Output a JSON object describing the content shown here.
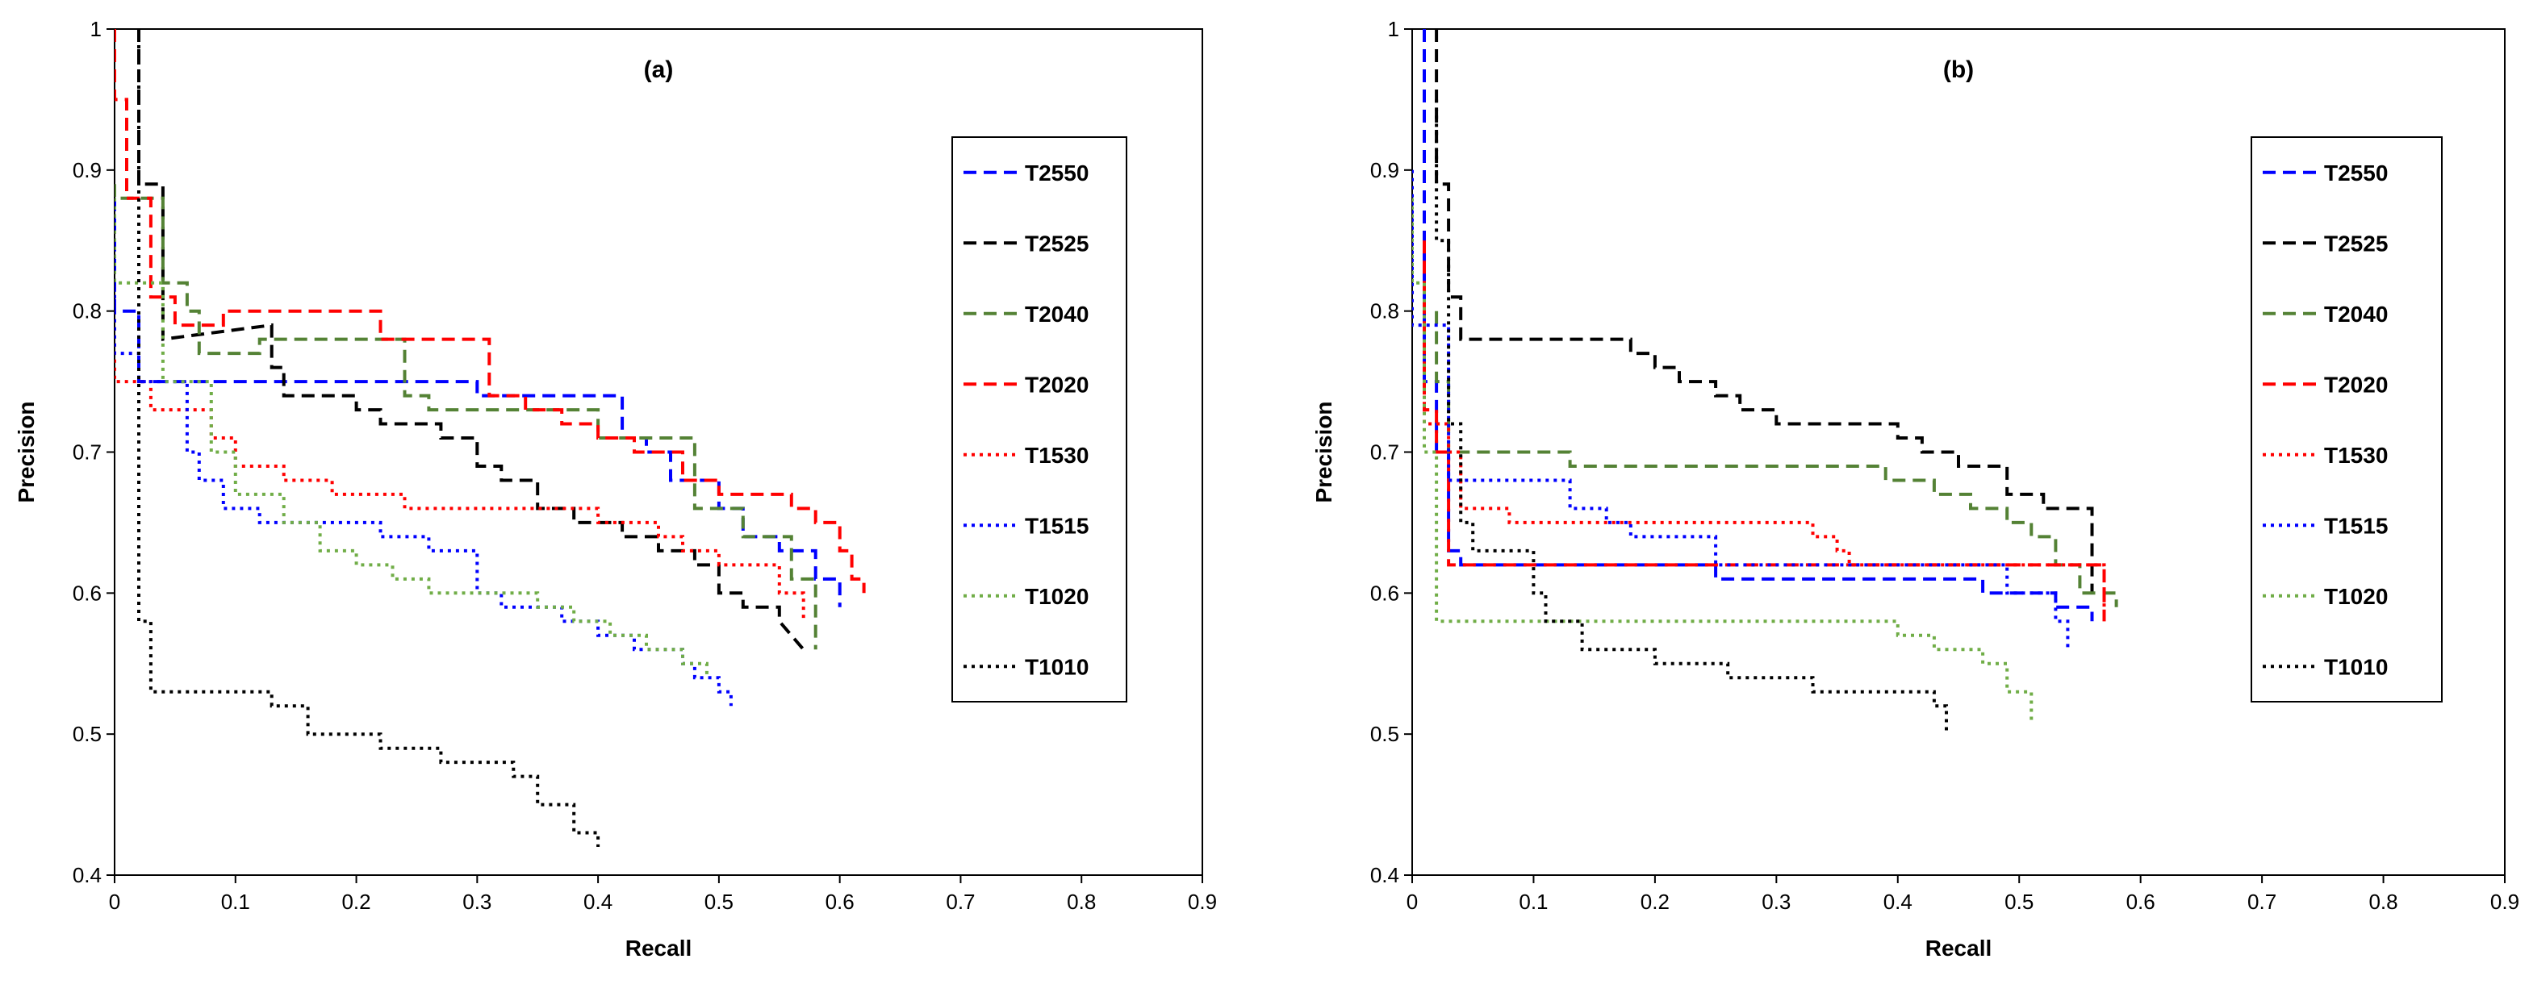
{
  "chart_data": [
    {
      "type": "line",
      "title": "(a)",
      "xlabel": "Recall",
      "ylabel": "Precision",
      "xlim": [
        0,
        0.9
      ],
      "ylim": [
        0.4,
        1
      ],
      "xticks": [
        "0",
        "0.1",
        "0.2",
        "0.3",
        "0.4",
        "0.5",
        "0.6",
        "0.7",
        "0.8",
        "0.9"
      ],
      "yticks": [
        "0.4",
        "0.5",
        "0.6",
        "0.7",
        "0.8",
        "0.9",
        "1"
      ],
      "legend_position": "right",
      "series": [
        {
          "name": "T2550",
          "color": "#0000ff",
          "style": "dashed",
          "x": [
            0,
            0,
            0.02,
            0.02,
            0.3,
            0.3,
            0.42,
            0.42,
            0.44,
            0.44,
            0.46,
            0.46,
            0.5,
            0.5,
            0.52,
            0.52,
            0.55,
            0.55,
            0.58,
            0.58,
            0.6,
            0.6
          ],
          "y": [
            0.88,
            0.8,
            0.8,
            0.75,
            0.75,
            0.74,
            0.74,
            0.71,
            0.71,
            0.7,
            0.7,
            0.68,
            0.68,
            0.66,
            0.66,
            0.64,
            0.64,
            0.63,
            0.63,
            0.61,
            0.61,
            0.59
          ]
        },
        {
          "name": "T2525",
          "color": "#000000",
          "style": "dashed",
          "x": [
            0.02,
            0.02,
            0.04,
            0.04,
            0.13,
            0.13,
            0.14,
            0.14,
            0.2,
            0.2,
            0.22,
            0.22,
            0.27,
            0.27,
            0.3,
            0.3,
            0.32,
            0.32,
            0.35,
            0.35,
            0.38,
            0.38,
            0.42,
            0.42,
            0.45,
            0.45,
            0.48,
            0.48,
            0.5,
            0.5,
            0.52,
            0.52,
            0.55,
            0.55,
            0.57
          ],
          "y": [
            1,
            0.89,
            0.89,
            0.78,
            0.79,
            0.76,
            0.76,
            0.74,
            0.74,
            0.73,
            0.73,
            0.72,
            0.72,
            0.71,
            0.71,
            0.69,
            0.69,
            0.68,
            0.68,
            0.66,
            0.66,
            0.65,
            0.65,
            0.64,
            0.64,
            0.63,
            0.63,
            0.62,
            0.62,
            0.6,
            0.6,
            0.59,
            0.59,
            0.58,
            0.56
          ]
        },
        {
          "name": "T2040",
          "color": "#548235",
          "style": "dashed",
          "x": [
            0,
            0,
            0.04,
            0.04,
            0.06,
            0.06,
            0.07,
            0.07,
            0.12,
            0.12,
            0.24,
            0.24,
            0.26,
            0.26,
            0.4,
            0.4,
            0.48,
            0.48,
            0.52,
            0.52,
            0.56,
            0.56,
            0.58,
            0.58
          ],
          "y": [
            0.89,
            0.88,
            0.88,
            0.82,
            0.82,
            0.8,
            0.8,
            0.77,
            0.77,
            0.78,
            0.78,
            0.74,
            0.74,
            0.73,
            0.73,
            0.71,
            0.71,
            0.66,
            0.66,
            0.64,
            0.64,
            0.61,
            0.61,
            0.56
          ]
        },
        {
          "name": "T2020",
          "color": "#ff0000",
          "style": "dashed",
          "x": [
            0,
            0,
            0.01,
            0.01,
            0.03,
            0.03,
            0.05,
            0.05,
            0.09,
            0.09,
            0.22,
            0.22,
            0.31,
            0.31,
            0.34,
            0.34,
            0.37,
            0.37,
            0.4,
            0.4,
            0.43,
            0.43,
            0.47,
            0.47,
            0.5,
            0.5,
            0.56,
            0.56,
            0.58,
            0.58,
            0.6,
            0.6,
            0.61,
            0.61,
            0.62,
            0.62
          ],
          "y": [
            1,
            0.95,
            0.95,
            0.88,
            0.88,
            0.81,
            0.81,
            0.79,
            0.79,
            0.8,
            0.8,
            0.78,
            0.78,
            0.74,
            0.74,
            0.73,
            0.73,
            0.72,
            0.72,
            0.71,
            0.71,
            0.7,
            0.7,
            0.68,
            0.68,
            0.67,
            0.67,
            0.66,
            0.66,
            0.65,
            0.65,
            0.63,
            0.63,
            0.61,
            0.61,
            0.6
          ]
        },
        {
          "name": "T1530",
          "color": "#ff0000",
          "style": "dotted",
          "x": [
            0,
            0,
            0.03,
            0.03,
            0.08,
            0.08,
            0.1,
            0.1,
            0.14,
            0.14,
            0.18,
            0.18,
            0.24,
            0.24,
            0.4,
            0.4,
            0.45,
            0.45,
            0.47,
            0.47,
            0.5,
            0.5,
            0.55,
            0.55,
            0.57,
            0.57
          ],
          "y": [
            0.88,
            0.75,
            0.75,
            0.73,
            0.73,
            0.71,
            0.71,
            0.69,
            0.69,
            0.68,
            0.68,
            0.67,
            0.67,
            0.66,
            0.66,
            0.65,
            0.65,
            0.64,
            0.64,
            0.63,
            0.63,
            0.62,
            0.62,
            0.6,
            0.6,
            0.58
          ]
        },
        {
          "name": "T1515",
          "color": "#0000ff",
          "style": "dotted",
          "x": [
            0,
            0,
            0.02,
            0.02,
            0.06,
            0.06,
            0.07,
            0.07,
            0.09,
            0.09,
            0.12,
            0.12,
            0.22,
            0.22,
            0.26,
            0.26,
            0.3,
            0.3,
            0.32,
            0.32,
            0.37,
            0.37,
            0.4,
            0.4,
            0.43,
            0.43,
            0.47,
            0.47,
            0.48,
            0.48,
            0.5,
            0.5,
            0.51,
            0.51
          ],
          "y": [
            0.88,
            0.77,
            0.77,
            0.75,
            0.75,
            0.7,
            0.7,
            0.68,
            0.68,
            0.66,
            0.66,
            0.65,
            0.65,
            0.64,
            0.64,
            0.63,
            0.63,
            0.6,
            0.6,
            0.59,
            0.59,
            0.58,
            0.58,
            0.57,
            0.57,
            0.56,
            0.56,
            0.55,
            0.55,
            0.54,
            0.54,
            0.53,
            0.53,
            0.52
          ]
        },
        {
          "name": "T1020",
          "color": "#70ad47",
          "style": "dotted",
          "x": [
            0,
            0,
            0.04,
            0.04,
            0.08,
            0.08,
            0.1,
            0.1,
            0.14,
            0.14,
            0.17,
            0.17,
            0.2,
            0.2,
            0.23,
            0.23,
            0.26,
            0.26,
            0.3,
            0.3,
            0.35,
            0.35,
            0.38,
            0.38,
            0.41,
            0.41,
            0.44,
            0.44,
            0.47,
            0.47,
            0.49,
            0.49
          ],
          "y": [
            0.88,
            0.82,
            0.82,
            0.75,
            0.75,
            0.7,
            0.7,
            0.67,
            0.67,
            0.65,
            0.65,
            0.63,
            0.63,
            0.62,
            0.62,
            0.61,
            0.61,
            0.6,
            0.6,
            0.6,
            0.6,
            0.59,
            0.59,
            0.58,
            0.58,
            0.57,
            0.57,
            0.56,
            0.56,
            0.55,
            0.55,
            0.54
          ]
        },
        {
          "name": "T1010",
          "color": "#000000",
          "style": "dotted",
          "x": [
            0.02,
            0.02,
            0.03,
            0.03,
            0.13,
            0.13,
            0.16,
            0.16,
            0.22,
            0.22,
            0.27,
            0.27,
            0.33,
            0.33,
            0.35,
            0.35,
            0.38,
            0.38,
            0.39,
            0.39,
            0.4,
            0.4
          ],
          "y": [
            1,
            0.58,
            0.58,
            0.53,
            0.53,
            0.52,
            0.52,
            0.5,
            0.5,
            0.49,
            0.49,
            0.48,
            0.48,
            0.47,
            0.47,
            0.45,
            0.45,
            0.43,
            0.43,
            0.43,
            0.43,
            0.42
          ]
        }
      ]
    },
    {
      "type": "line",
      "title": "(b)",
      "xlabel": "Recall",
      "ylabel": "Precision",
      "xlim": [
        0,
        0.9
      ],
      "ylim": [
        0.4,
        1
      ],
      "xticks": [
        "0",
        "0.1",
        "0.2",
        "0.3",
        "0.4",
        "0.5",
        "0.6",
        "0.7",
        "0.8",
        "0.9"
      ],
      "yticks": [
        "0.4",
        "0.5",
        "0.6",
        "0.7",
        "0.8",
        "0.9",
        "1"
      ],
      "legend_position": "right",
      "series": [
        {
          "name": "T2550",
          "color": "#0000ff",
          "style": "dashed",
          "x": [
            0.01,
            0.01,
            0.02,
            0.02,
            0.03,
            0.03,
            0.04,
            0.04,
            0.25,
            0.25,
            0.47,
            0.47,
            0.5,
            0.5,
            0.53,
            0.53,
            0.56,
            0.56
          ],
          "y": [
            1,
            0.75,
            0.75,
            0.7,
            0.7,
            0.63,
            0.63,
            0.62,
            0.62,
            0.61,
            0.61,
            0.6,
            0.6,
            0.6,
            0.6,
            0.59,
            0.59,
            0.58
          ]
        },
        {
          "name": "T2525",
          "color": "#000000",
          "style": "dashed",
          "x": [
            0.02,
            0.02,
            0.03,
            0.03,
            0.04,
            0.04,
            0.18,
            0.18,
            0.2,
            0.2,
            0.22,
            0.22,
            0.25,
            0.25,
            0.27,
            0.27,
            0.3,
            0.3,
            0.33,
            0.33,
            0.4,
            0.4,
            0.42,
            0.42,
            0.45,
            0.45,
            0.49,
            0.49,
            0.52,
            0.52,
            0.55,
            0.55,
            0.56,
            0.56
          ],
          "y": [
            1,
            0.89,
            0.89,
            0.81,
            0.81,
            0.78,
            0.78,
            0.77,
            0.77,
            0.76,
            0.76,
            0.75,
            0.75,
            0.74,
            0.74,
            0.73,
            0.73,
            0.72,
            0.72,
            0.72,
            0.72,
            0.71,
            0.71,
            0.7,
            0.7,
            0.69,
            0.69,
            0.67,
            0.67,
            0.66,
            0.66,
            0.66,
            0.66,
            0.6
          ]
        },
        {
          "name": "T2040",
          "color": "#548235",
          "style": "dashed",
          "x": [
            0.02,
            0.02,
            0.03,
            0.03,
            0.13,
            0.13,
            0.39,
            0.39,
            0.43,
            0.43,
            0.46,
            0.46,
            0.49,
            0.49,
            0.51,
            0.51,
            0.53,
            0.53,
            0.55,
            0.55,
            0.58,
            0.58
          ],
          "y": [
            0.8,
            0.75,
            0.75,
            0.7,
            0.7,
            0.69,
            0.69,
            0.68,
            0.68,
            0.67,
            0.67,
            0.66,
            0.66,
            0.65,
            0.65,
            0.64,
            0.64,
            0.62,
            0.62,
            0.6,
            0.6,
            0.59
          ]
        },
        {
          "name": "T2020",
          "color": "#ff0000",
          "style": "dashed",
          "x": [
            0.01,
            0.01,
            0.02,
            0.02,
            0.03,
            0.03,
            0.57,
            0.57
          ],
          "y": [
            0.85,
            0.73,
            0.73,
            0.7,
            0.7,
            0.62,
            0.62,
            0.58
          ]
        },
        {
          "name": "T1530",
          "color": "#ff0000",
          "style": "dotted",
          "x": [
            0.01,
            0.01,
            0.03,
            0.03,
            0.04,
            0.04,
            0.05,
            0.05,
            0.08,
            0.08,
            0.33,
            0.33,
            0.35,
            0.35,
            0.36,
            0.36,
            0.57,
            0.57
          ],
          "y": [
            0.78,
            0.72,
            0.72,
            0.7,
            0.7,
            0.66,
            0.66,
            0.66,
            0.66,
            0.65,
            0.65,
            0.64,
            0.64,
            0.63,
            0.63,
            0.62,
            0.62,
            0.58
          ]
        },
        {
          "name": "T1515",
          "color": "#0000ff",
          "style": "dotted",
          "x": [
            0,
            0,
            0.03,
            0.03,
            0.13,
            0.13,
            0.16,
            0.16,
            0.18,
            0.18,
            0.25,
            0.25,
            0.49,
            0.49,
            0.53,
            0.53,
            0.54,
            0.54
          ],
          "y": [
            0.9,
            0.79,
            0.79,
            0.68,
            0.68,
            0.66,
            0.66,
            0.65,
            0.65,
            0.64,
            0.64,
            0.62,
            0.62,
            0.6,
            0.6,
            0.58,
            0.58,
            0.56
          ]
        },
        {
          "name": "T1020",
          "color": "#70ad47",
          "style": "dotted",
          "x": [
            0,
            0,
            0.01,
            0.01,
            0.02,
            0.02,
            0.03,
            0.03,
            0.4,
            0.4,
            0.43,
            0.43,
            0.47,
            0.47,
            0.49,
            0.49,
            0.51,
            0.51
          ],
          "y": [
            0.88,
            0.82,
            0.82,
            0.7,
            0.7,
            0.58,
            0.58,
            0.58,
            0.58,
            0.57,
            0.57,
            0.56,
            0.56,
            0.55,
            0.55,
            0.53,
            0.53,
            0.51
          ]
        },
        {
          "name": "T1010",
          "color": "#000000",
          "style": "dotted",
          "x": [
            0.02,
            0.02,
            0.03,
            0.03,
            0.04,
            0.04,
            0.05,
            0.05,
            0.1,
            0.1,
            0.11,
            0.11,
            0.14,
            0.14,
            0.2,
            0.2,
            0.26,
            0.26,
            0.33,
            0.33,
            0.42,
            0.42,
            0.43,
            0.43,
            0.44,
            0.44
          ],
          "y": [
            0.95,
            0.85,
            0.85,
            0.72,
            0.72,
            0.65,
            0.65,
            0.63,
            0.63,
            0.6,
            0.6,
            0.58,
            0.58,
            0.56,
            0.56,
            0.55,
            0.55,
            0.54,
            0.54,
            0.53,
            0.53,
            0.53,
            0.53,
            0.52,
            0.52,
            0.5
          ]
        }
      ]
    }
  ]
}
